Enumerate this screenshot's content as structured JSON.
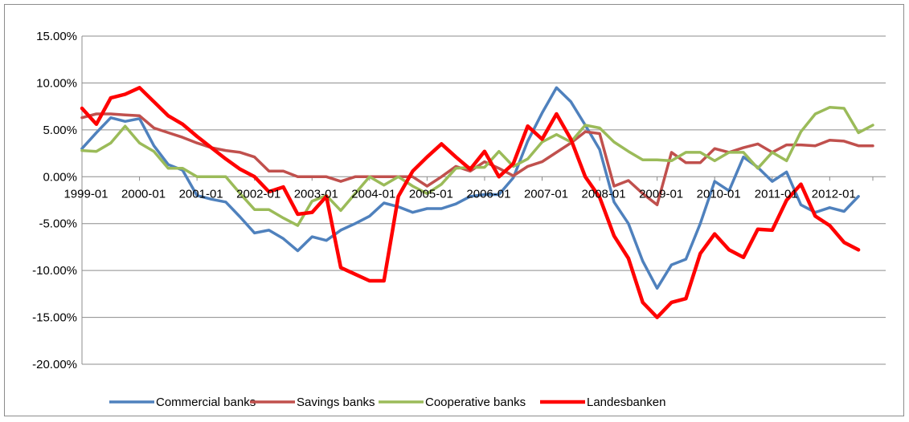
{
  "chart_data": {
    "type": "line",
    "title": "",
    "xlabel": "",
    "ylabel": "",
    "ylim": [
      -0.2,
      0.15
    ],
    "y_tick_values": [
      0.15,
      0.1,
      0.05,
      0.0,
      -0.05,
      -0.1,
      -0.15,
      -0.2
    ],
    "y_tick_labels": [
      "15.00%",
      "10.00%",
      "5.00%",
      "0.00%",
      "-5.00%",
      "-10.00%",
      "-15.00%",
      "-20.00%"
    ],
    "x_tick_labels": [
      "1999-01",
      "2000-01",
      "2001-01",
      "2002-01",
      "2003-01",
      "2004-01",
      "2005-01",
      "2006-01",
      "2007-01",
      "2008-01",
      "2009-01",
      "2010-01",
      "2011-01",
      "2012-01"
    ],
    "x_start": "1999-01",
    "frequency": "quarterly",
    "grid": "horizontal",
    "legend_position": "bottom",
    "series": [
      {
        "name": "Commercial banks",
        "color": "#4f81bd",
        "values": [
          0.03,
          0.047,
          0.063,
          0.059,
          0.062,
          0.033,
          0.013,
          0.007,
          -0.02,
          -0.024,
          -0.027,
          -0.043,
          -0.06,
          -0.057,
          -0.066,
          -0.079,
          -0.064,
          -0.068,
          -0.057,
          -0.05,
          -0.042,
          -0.028,
          -0.032,
          -0.038,
          -0.034,
          -0.034,
          -0.029,
          -0.021,
          -0.019,
          -0.019,
          -0.001,
          0.038,
          0.068,
          0.095,
          0.08,
          0.055,
          0.029,
          -0.027,
          -0.05,
          -0.09,
          -0.119,
          -0.094,
          -0.088,
          -0.05,
          -0.005,
          -0.015,
          0.021,
          0.01,
          -0.005,
          0.005,
          -0.03,
          -0.038,
          -0.033,
          -0.037,
          -0.021
        ]
      },
      {
        "name": "Savings banks",
        "color": "#c0504d",
        "values": [
          0.063,
          0.067,
          0.067,
          0.066,
          0.065,
          0.052,
          0.047,
          0.042,
          0.036,
          0.031,
          0.028,
          0.026,
          0.021,
          0.006,
          0.006,
          0.0,
          0.0,
          0.0,
          -0.005,
          0.0,
          0.0,
          0.0,
          0.0,
          0.0,
          -0.01,
          0.0,
          0.011,
          0.006,
          0.016,
          0.009,
          0.001,
          0.011,
          0.016,
          0.026,
          0.036,
          0.048,
          0.046,
          -0.01,
          -0.004,
          -0.018,
          -0.03,
          0.026,
          0.015,
          0.015,
          0.03,
          0.026,
          0.031,
          0.035,
          0.026,
          0.034,
          0.034,
          0.033,
          0.039,
          0.038,
          0.033,
          0.033
        ]
      },
      {
        "name": "Cooperative banks",
        "color": "#9bbb59",
        "values": [
          0.028,
          0.027,
          0.036,
          0.054,
          0.036,
          0.027,
          0.009,
          0.009,
          0.0,
          0.0,
          0.0,
          -0.018,
          -0.035,
          -0.035,
          -0.044,
          -0.052,
          -0.026,
          -0.02,
          -0.036,
          -0.018,
          0.0,
          -0.009,
          0.0,
          -0.01,
          -0.018,
          -0.008,
          0.009,
          0.01,
          0.01,
          0.027,
          0.011,
          0.019,
          0.037,
          0.045,
          0.037,
          0.055,
          0.052,
          0.037,
          0.027,
          0.018,
          0.018,
          0.017,
          0.026,
          0.026,
          0.017,
          0.026,
          0.026,
          0.009,
          0.026,
          0.017,
          0.048,
          0.067,
          0.074,
          0.073,
          0.047,
          0.055
        ]
      },
      {
        "name": "Landesbanken",
        "color": "#ff0000",
        "values": [
          0.073,
          0.056,
          0.084,
          0.088,
          0.095,
          0.08,
          0.065,
          0.056,
          0.043,
          0.031,
          0.019,
          0.008,
          0.0,
          -0.016,
          -0.011,
          -0.04,
          -0.038,
          -0.021,
          -0.097,
          -0.104,
          -0.111,
          -0.111,
          -0.021,
          0.006,
          0.021,
          0.035,
          0.021,
          0.008,
          0.027,
          0.0,
          0.014,
          0.054,
          0.04,
          0.067,
          0.04,
          0.0,
          -0.022,
          -0.063,
          -0.087,
          -0.134,
          -0.15,
          -0.134,
          -0.13,
          -0.082,
          -0.061,
          -0.078,
          -0.086,
          -0.056,
          -0.057,
          -0.025,
          -0.008,
          -0.042,
          -0.052,
          -0.07,
          -0.078
        ]
      }
    ]
  }
}
